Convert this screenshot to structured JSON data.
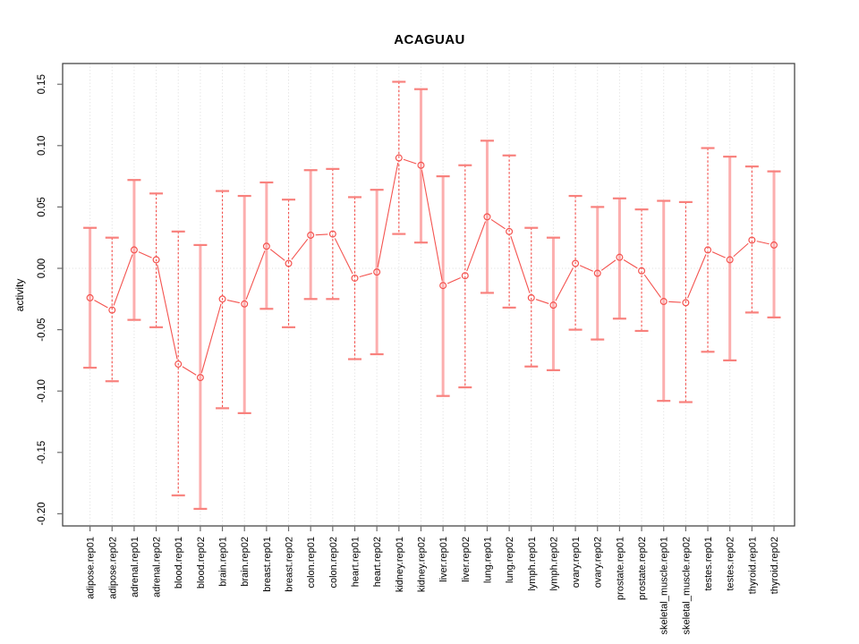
{
  "chart_data": {
    "type": "scatter",
    "title": "ACAGUAU",
    "ylabel": "activity",
    "xlabel": "",
    "legend": "none",
    "grid": "dotted vertical line per category; dotted horizontal line at 0",
    "ylim": [
      -0.21,
      0.167
    ],
    "y_tick_labels": [
      "0.15",
      "0.10",
      "0.05",
      "0.00",
      "-0.05",
      "-0.10",
      "-0.15",
      "-0.20"
    ],
    "y_tick_values": [
      0.15,
      0.1,
      0.05,
      0.0,
      -0.05,
      -0.1,
      -0.15,
      -0.2
    ],
    "categories": [
      "adipose.rep01",
      "adipose.rep02",
      "adrenal.rep01",
      "adrenal.rep02",
      "blood.rep01",
      "blood.rep02",
      "brain.rep01",
      "brain.rep02",
      "breast.rep01",
      "breast.rep02",
      "colon.rep01",
      "colon.rep02",
      "heart.rep01",
      "heart.rep02",
      "kidney.rep01",
      "kidney.rep02",
      "liver.rep01",
      "liver.rep02",
      "lung.rep01",
      "lung.rep02",
      "lymph.rep01",
      "lymph.rep02",
      "ovary.rep01",
      "ovary.rep02",
      "prostate.rep01",
      "prostate.rep02",
      "skeletal_muscle.rep01",
      "skeletal_muscle.rep02",
      "testes.rep01",
      "testes.rep02",
      "thyroid.rep01",
      "thyroid.rep02"
    ],
    "series": [
      {
        "name": "activity",
        "marker": "open-circle",
        "points": [
          {
            "category": "adipose.rep01",
            "value": -0.024,
            "lo": -0.081,
            "hi": 0.033,
            "bar_style": "solid"
          },
          {
            "category": "adipose.rep02",
            "value": -0.034,
            "lo": -0.092,
            "hi": 0.025,
            "bar_style": "dashed"
          },
          {
            "category": "adrenal.rep01",
            "value": 0.015,
            "lo": -0.042,
            "hi": 0.072,
            "bar_style": "solid"
          },
          {
            "category": "adrenal.rep02",
            "value": 0.007,
            "lo": -0.048,
            "hi": 0.061,
            "bar_style": "dashed"
          },
          {
            "category": "blood.rep01",
            "value": -0.078,
            "lo": -0.185,
            "hi": 0.03,
            "bar_style": "dashed"
          },
          {
            "category": "blood.rep02",
            "value": -0.089,
            "lo": -0.196,
            "hi": 0.019,
            "bar_style": "solid"
          },
          {
            "category": "brain.rep01",
            "value": -0.025,
            "lo": -0.114,
            "hi": 0.063,
            "bar_style": "dashed"
          },
          {
            "category": "brain.rep02",
            "value": -0.029,
            "lo": -0.118,
            "hi": 0.059,
            "bar_style": "solid"
          },
          {
            "category": "breast.rep01",
            "value": 0.018,
            "lo": -0.033,
            "hi": 0.07,
            "bar_style": "solid"
          },
          {
            "category": "breast.rep02",
            "value": 0.004,
            "lo": -0.048,
            "hi": 0.056,
            "bar_style": "dashed"
          },
          {
            "category": "colon.rep01",
            "value": 0.027,
            "lo": -0.025,
            "hi": 0.08,
            "bar_style": "solid"
          },
          {
            "category": "colon.rep02",
            "value": 0.028,
            "lo": -0.025,
            "hi": 0.081,
            "bar_style": "dashed"
          },
          {
            "category": "heart.rep01",
            "value": -0.008,
            "lo": -0.074,
            "hi": 0.058,
            "bar_style": "dashed"
          },
          {
            "category": "heart.rep02",
            "value": -0.003,
            "lo": -0.07,
            "hi": 0.064,
            "bar_style": "solid"
          },
          {
            "category": "kidney.rep01",
            "value": 0.09,
            "lo": 0.028,
            "hi": 0.152,
            "bar_style": "dashed"
          },
          {
            "category": "kidney.rep02",
            "value": 0.084,
            "lo": 0.021,
            "hi": 0.146,
            "bar_style": "solid"
          },
          {
            "category": "liver.rep01",
            "value": -0.014,
            "lo": -0.104,
            "hi": 0.075,
            "bar_style": "solid"
          },
          {
            "category": "liver.rep02",
            "value": -0.006,
            "lo": -0.097,
            "hi": 0.084,
            "bar_style": "dashed"
          },
          {
            "category": "lung.rep01",
            "value": 0.042,
            "lo": -0.02,
            "hi": 0.104,
            "bar_style": "solid"
          },
          {
            "category": "lung.rep02",
            "value": 0.03,
            "lo": -0.032,
            "hi": 0.092,
            "bar_style": "dashed"
          },
          {
            "category": "lymph.rep01",
            "value": -0.024,
            "lo": -0.08,
            "hi": 0.033,
            "bar_style": "dashed"
          },
          {
            "category": "lymph.rep02",
            "value": -0.03,
            "lo": -0.083,
            "hi": 0.025,
            "bar_style": "solid"
          },
          {
            "category": "ovary.rep01",
            "value": 0.004,
            "lo": -0.05,
            "hi": 0.059,
            "bar_style": "dashed"
          },
          {
            "category": "ovary.rep02",
            "value": -0.004,
            "lo": -0.058,
            "hi": 0.05,
            "bar_style": "solid"
          },
          {
            "category": "prostate.rep01",
            "value": 0.009,
            "lo": -0.041,
            "hi": 0.057,
            "bar_style": "solid"
          },
          {
            "category": "prostate.rep02",
            "value": -0.002,
            "lo": -0.051,
            "hi": 0.048,
            "bar_style": "dashed"
          },
          {
            "category": "skeletal_muscle.rep01",
            "value": -0.027,
            "lo": -0.108,
            "hi": 0.055,
            "bar_style": "solid"
          },
          {
            "category": "skeletal_muscle.rep02",
            "value": -0.028,
            "lo": -0.109,
            "hi": 0.054,
            "bar_style": "dashed"
          },
          {
            "category": "testes.rep01",
            "value": 0.015,
            "lo": -0.068,
            "hi": 0.098,
            "bar_style": "dashed"
          },
          {
            "category": "testes.rep02",
            "value": 0.007,
            "lo": -0.075,
            "hi": 0.091,
            "bar_style": "solid"
          },
          {
            "category": "thyroid.rep01",
            "value": 0.023,
            "lo": -0.036,
            "hi": 0.083,
            "bar_style": "dashed"
          },
          {
            "category": "thyroid.rep02",
            "value": 0.019,
            "lo": -0.04,
            "hi": 0.079,
            "bar_style": "solid"
          }
        ]
      }
    ],
    "colors": {
      "point": "#f4534f",
      "connector": "#f4534f",
      "dashed_bar": "#f4534f",
      "solid_bar": "#fcaeae",
      "cap": "#f8817d",
      "grid": "#dcdcdc",
      "box": "#3a3a3a",
      "tick": "#6e6e6e",
      "text": "#000000",
      "background": "#ffffff"
    }
  }
}
